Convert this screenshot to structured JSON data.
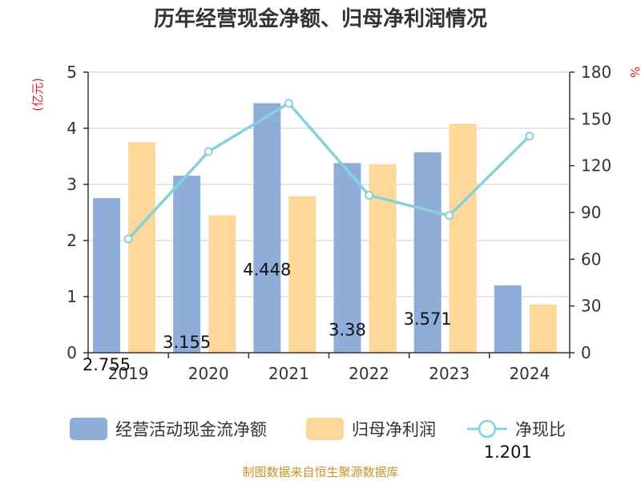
{
  "chart_data": {
    "type": "bar",
    "title": "历年经营现金净额、归母净利润情况",
    "categories": [
      "2019",
      "2020",
      "2021",
      "2022",
      "2023",
      "2024"
    ],
    "series": [
      {
        "name": "经营活动现金流净额",
        "type": "bar",
        "axis": "left",
        "values": [
          2.755,
          3.155,
          4.448,
          3.38,
          3.571,
          1.201
        ],
        "data_labels": [
          "2.755",
          "3.155",
          "4.448",
          "3.38",
          "3.571",
          "1.201"
        ]
      },
      {
        "name": "归母净利润",
        "type": "bar",
        "axis": "left",
        "values": [
          3.75,
          2.45,
          2.79,
          3.36,
          4.08,
          0.86
        ]
      },
      {
        "name": "净现比",
        "type": "line",
        "axis": "right",
        "values": [
          73,
          129,
          160,
          101,
          88,
          139
        ]
      }
    ],
    "y_left": {
      "unit": "(亿元)",
      "range": [
        0,
        5
      ],
      "ticks": [
        "0",
        "1",
        "2",
        "3",
        "4",
        "5"
      ]
    },
    "y_right": {
      "unit": "%",
      "range": [
        0,
        180
      ],
      "ticks": [
        "0",
        "30",
        "60",
        "90",
        "120",
        "150",
        "180"
      ]
    },
    "grid": true,
    "legend_position": "bottom",
    "colors": {
      "bar1": "#8eadd9",
      "bar2": "#fed79a",
      "line": "#87d2d8",
      "unit": "#e02020",
      "source": "#c8932a"
    },
    "source_note": "制图数据来自恒生聚源数据库"
  }
}
